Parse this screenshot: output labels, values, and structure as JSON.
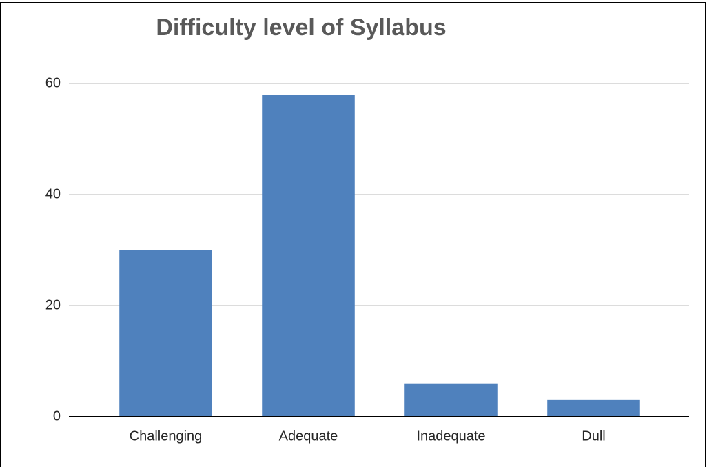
{
  "chart_data": {
    "type": "bar",
    "title": "Difficulty level of Syllabus",
    "categories": [
      "Challenging",
      "Adequate",
      "Inadequate",
      "Dull"
    ],
    "values": [
      30,
      58,
      6,
      3
    ],
    "color": "#4f81bd",
    "ylim": [
      0,
      60
    ],
    "yticks": [
      0,
      20,
      40,
      60
    ],
    "grid": true
  }
}
